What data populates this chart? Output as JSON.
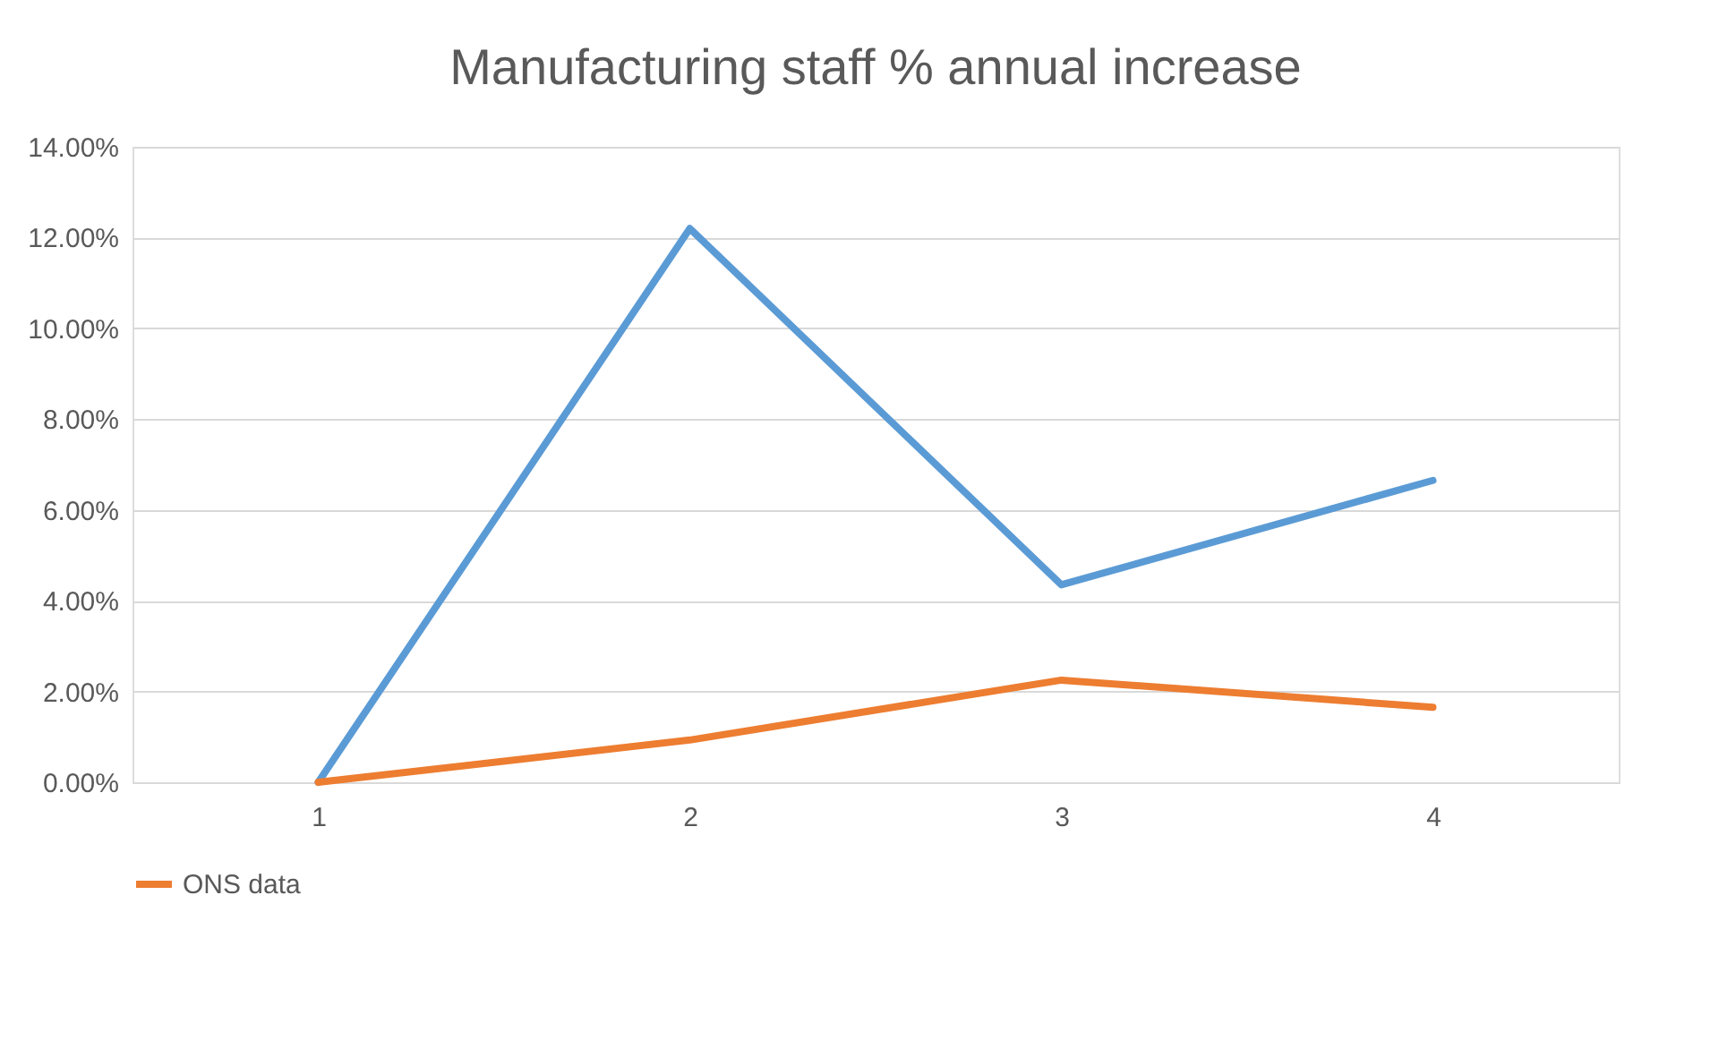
{
  "chart_data": {
    "type": "line",
    "title": "Manufacturing staff % annual increase",
    "categories": [
      "1",
      "2",
      "3",
      "4"
    ],
    "series": [
      {
        "color": "#5b9bd5",
        "values": [
          0,
          12.2,
          4.35,
          6.65
        ]
      },
      {
        "name": "ONS data",
        "color": "#ed7d31",
        "values": [
          0,
          0.93,
          2.25,
          1.65
        ]
      }
    ],
    "ylim": [
      0,
      14
    ],
    "yticks": [
      {
        "value": 0,
        "label": "0.00%"
      },
      {
        "value": 2,
        "label": "2.00%"
      },
      {
        "value": 4,
        "label": "4.00%"
      },
      {
        "value": 6,
        "label": "6.00%"
      },
      {
        "value": 8,
        "label": "8.00%"
      },
      {
        "value": 10,
        "label": "10.00%"
      },
      {
        "value": 12,
        "label": "12.00%"
      },
      {
        "value": 14,
        "label": "14.00%"
      }
    ],
    "grid": "y",
    "legend": "bottom",
    "marker": "none",
    "line_style": "solid"
  }
}
